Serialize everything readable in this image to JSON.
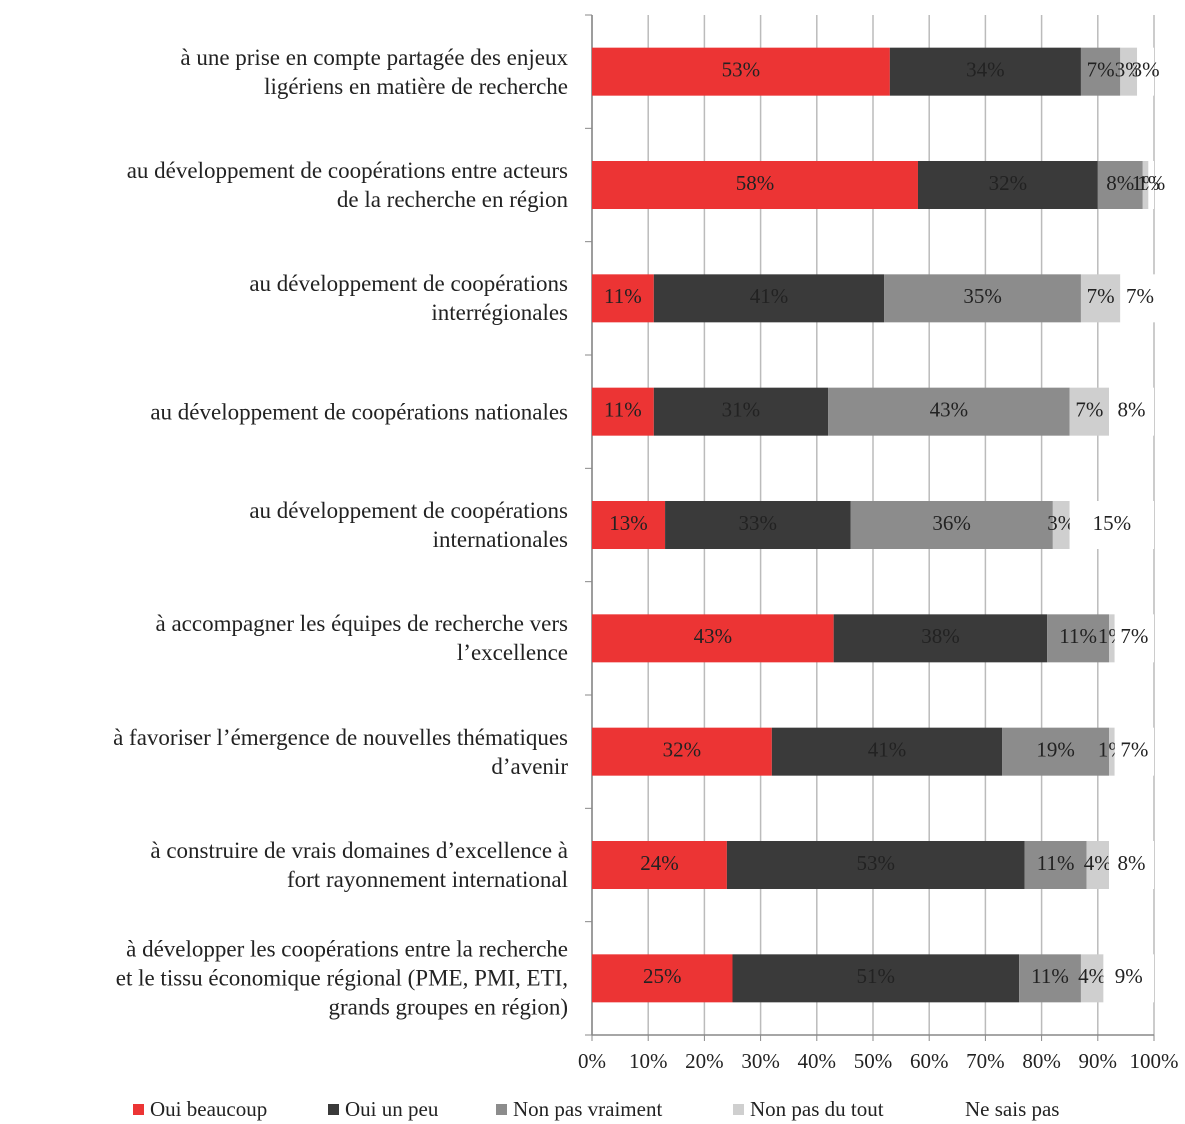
{
  "chart_data": {
    "type": "stacked-bar-horizontal",
    "categories": [
      "à une prise en compte partagée des enjeux\nligériens en matière de recherche",
      "au développement de coopérations entre acteurs\nde la recherche en région",
      "au développement de coopérations\ninterrégionales",
      "au développement de coopérations nationales",
      "au développement de coopérations\ninternationales",
      "à accompagner les équipes de recherche vers\nl’excellence",
      "à favoriser l’émergence de nouvelles thématiques\nd’avenir",
      "à construire de vrais domaines d’excellence à\nfort rayonnement international",
      "à développer les coopérations entre la recherche\net le tissu économique régional (PME, PMI, ETI,\ngrands groupes en région)"
    ],
    "series": [
      {
        "name": "Oui beaucoup",
        "color": "#ec3434",
        "values": [
          53,
          58,
          11,
          11,
          13,
          43,
          32,
          24,
          25
        ],
        "value_labels": [
          "53%",
          "58%",
          "11%",
          "11%",
          "13%",
          "43%",
          "32%",
          "24%",
          "25%"
        ]
      },
      {
        "name": "Oui un peu",
        "color": "#3a3a3a",
        "values": [
          34,
          32,
          41,
          31,
          33,
          38,
          41,
          53,
          51
        ],
        "value_labels": [
          "34%",
          "32%",
          "41%",
          "31%",
          "33%",
          "38%",
          "41%",
          "53%",
          "51%"
        ]
      },
      {
        "name": "Non pas vraiment",
        "color": "#8c8c8c",
        "values": [
          7,
          8,
          35,
          43,
          36,
          11,
          19,
          11,
          11
        ],
        "value_labels": [
          "7%",
          "8%",
          "35%",
          "43%",
          "36%",
          "11%",
          "19%",
          "11%",
          "11%"
        ]
      },
      {
        "name": "Non pas du tout",
        "color": "#cfcfcf",
        "values": [
          3,
          1,
          7,
          7,
          3,
          1,
          1,
          4,
          4
        ],
        "value_labels": [
          "3%",
          "1%",
          "7%",
          "7%",
          "3%",
          "1%",
          "1%",
          "4%",
          "4%"
        ]
      },
      {
        "name": "Ne sais pas",
        "color": "#ffffff",
        "values": [
          3,
          1,
          7,
          8,
          15,
          7,
          7,
          8,
          9
        ],
        "value_labels": [
          "3%",
          "1%",
          "7%",
          "8%",
          "15%",
          "7%",
          "7%",
          "8%",
          "9%"
        ]
      }
    ],
    "xlim": [
      0,
      100
    ],
    "xticks": [
      {
        "value": 0,
        "label": "0%"
      },
      {
        "value": 10,
        "label": "10%"
      },
      {
        "value": 20,
        "label": "20%"
      },
      {
        "value": 30,
        "label": "30%"
      },
      {
        "value": 40,
        "label": "40%"
      },
      {
        "value": 50,
        "label": "50%"
      },
      {
        "value": 60,
        "label": "60%"
      },
      {
        "value": 70,
        "label": "70%"
      },
      {
        "value": 80,
        "label": "80%"
      },
      {
        "value": 90,
        "label": "90%"
      },
      {
        "value": 100,
        "label": "100%"
      }
    ],
    "grid": true,
    "legend": "bottom"
  }
}
